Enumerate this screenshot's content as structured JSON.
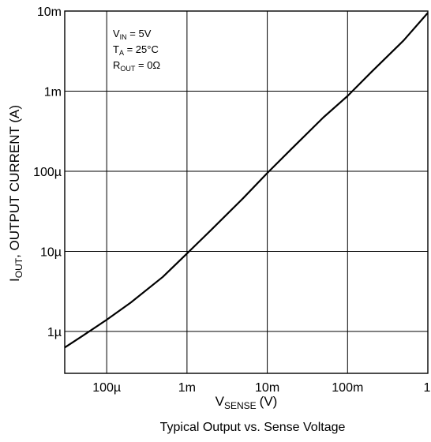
{
  "chart_data": {
    "type": "line",
    "title": "Typical Output vs. Sense Voltage",
    "xlabel": {
      "main": "V",
      "sub": "SENSE",
      "unit": "(V)"
    },
    "ylabel": {
      "main": "I",
      "sub": "OUT",
      "rest": ", OUTPUT CURRENT (A)"
    },
    "xscale": "log",
    "yscale": "log",
    "xlim": [
      3e-05,
      1
    ],
    "ylim": [
      3e-07,
      0.01
    ],
    "grid": true,
    "x_ticks": [
      {
        "value": 0.0001,
        "label": "100µ"
      },
      {
        "value": 0.001,
        "label": "1m"
      },
      {
        "value": 0.01,
        "label": "10m"
      },
      {
        "value": 0.1,
        "label": "100m"
      },
      {
        "value": 1,
        "label": "1"
      }
    ],
    "y_ticks": [
      {
        "value": 1e-06,
        "label": "1µ"
      },
      {
        "value": 1e-05,
        "label": "10µ"
      },
      {
        "value": 0.0001,
        "label": "100µ"
      },
      {
        "value": 0.001,
        "label": "1m"
      },
      {
        "value": 0.01,
        "label": "10m"
      }
    ],
    "annotations": [
      {
        "main": "V",
        "sub": "IN",
        "rest": " = 5V"
      },
      {
        "main": "T",
        "sub": "A",
        "rest": " = 25°C"
      },
      {
        "main": "R",
        "sub": "OUT",
        "rest": " = 0Ω"
      }
    ],
    "series": [
      {
        "x": [
          3e-05,
          5e-05,
          0.0001,
          0.0002,
          0.0005,
          0.001,
          0.002,
          0.005,
          0.01,
          0.02,
          0.05,
          0.1,
          0.2,
          0.5,
          1
        ],
        "y": [
          6.3e-07,
          8.8e-07,
          1.4e-06,
          2.3e-06,
          4.8e-06,
          9.4e-06,
          1.85e-05,
          4.6e-05,
          9.5e-05,
          0.00019,
          0.00047,
          0.00087,
          0.00175,
          0.0043,
          0.0095
        ]
      }
    ]
  }
}
